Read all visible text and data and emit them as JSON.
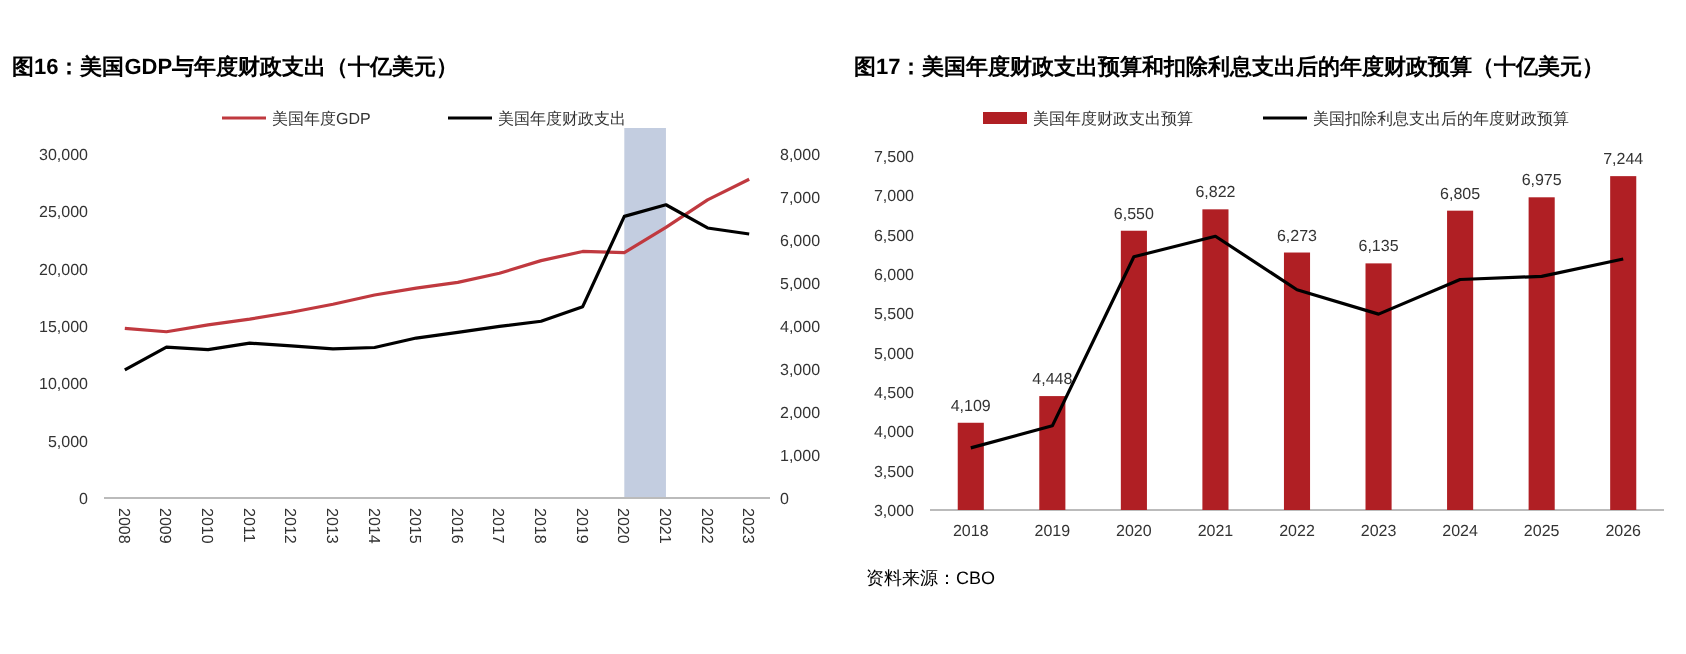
{
  "chart_data": [
    {
      "type": "line",
      "title": "图16：美国GDP与年度财政支出（十亿美元）",
      "categories": [
        "2008",
        "2009",
        "2010",
        "2011",
        "2012",
        "2013",
        "2014",
        "2015",
        "2016",
        "2017",
        "2018",
        "2019",
        "2020",
        "2021",
        "2022",
        "2023"
      ],
      "series": [
        {
          "name": "美国年度GDP",
          "color": "#c0393f",
          "values": [
            14800,
            14500,
            15100,
            15600,
            16200,
            16900,
            17700,
            18300,
            18800,
            19600,
            20700,
            21500,
            21400,
            23600,
            26000,
            27800
          ]
        },
        {
          "name": "美国年度财政支出",
          "color": "#000000",
          "axis": "y2",
          "values": [
            2980,
            3510,
            3450,
            3600,
            3540,
            3470,
            3500,
            3720,
            3850,
            3990,
            4110,
            4450,
            6550,
            6820,
            6280,
            6140
          ]
        }
      ],
      "ylim": [
        0,
        30000
      ],
      "yticks": [
        0,
        {
          "value": 5000,
          "label": "5,000"
        },
        {
          "value": 10000,
          "label": "10,000"
        },
        {
          "value": 15000,
          "label": "15,000"
        },
        {
          "value": 20000,
          "label": "20,000"
        },
        {
          "value": 25000,
          "label": "25,000"
        },
        {
          "value": 30000,
          "label": "30,000"
        }
      ],
      "y2lim": [
        0,
        8000
      ],
      "y2ticks": [
        0,
        {
          "value": 1000,
          "label": "1,000"
        },
        {
          "value": 2000,
          "label": "2,000"
        },
        {
          "value": 3000,
          "label": "3,000"
        },
        {
          "value": 4000,
          "label": "4,000"
        },
        {
          "value": 5000,
          "label": "5,000"
        },
        {
          "value": 6000,
          "label": "6,000"
        },
        {
          "value": 7000,
          "label": "7,000"
        },
        {
          "value": 8000,
          "label": "8,000"
        }
      ],
      "bands": [
        {
          "axis": "x",
          "from": "2020",
          "to": "2021",
          "color": "#c3cde0"
        }
      ],
      "legend": "top",
      "grid": false
    },
    {
      "type": "bar",
      "title": "图17：美国年度财政支出预算和扣除利息支出后的年度财政预算（十亿美元）",
      "categories": [
        "2018",
        "2019",
        "2020",
        "2021",
        "2022",
        "2023",
        "2024",
        "2025",
        "2026"
      ],
      "series": [
        {
          "name": "美国年度财政支出预算",
          "color": "#b01f24",
          "values": [
            4109,
            4448,
            6550,
            6822,
            6273,
            6135,
            6805,
            6975,
            7244
          ],
          "value_labels": [
            "4,109",
            "4,448",
            "6,550",
            "6,822",
            "6,273",
            "6,135",
            "6,805",
            "6,975",
            "7,244"
          ]
        },
        {
          "name": "美国扣除利息支出后的年度财政预算",
          "type": "line",
          "color": "#000000",
          "values": [
            3790,
            4070,
            6220,
            6480,
            5800,
            5490,
            5930,
            5970,
            6190
          ]
        }
      ],
      "ylim": [
        3000,
        7500
      ],
      "yticks": [
        {
          "value": 3000,
          "label": "3,000"
        },
        {
          "value": 3500,
          "label": "3,500"
        },
        {
          "value": 4000,
          "label": "4,000"
        },
        {
          "value": 4500,
          "label": "4,500"
        },
        {
          "value": 5000,
          "label": "5,000"
        },
        {
          "value": 5500,
          "label": "5,500"
        },
        {
          "value": 6000,
          "label": "6,000"
        },
        {
          "value": 6500,
          "label": "6,500"
        },
        {
          "value": 7000,
          "label": "7,000"
        },
        {
          "value": 7500,
          "label": "7,500"
        }
      ],
      "annotations": [
        "资料来源：CBO"
      ],
      "legend": "top",
      "grid": false
    }
  ]
}
